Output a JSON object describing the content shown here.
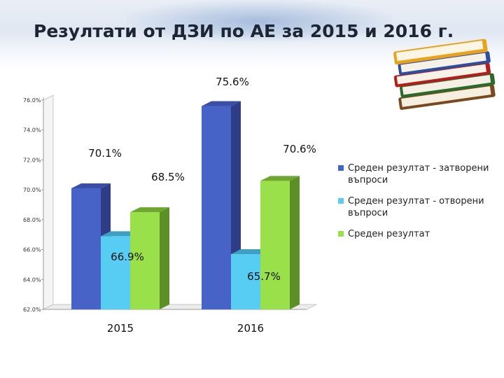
{
  "slide": {
    "title": "Резултати от ДЗИ по АЕ за 2015 и 2016 г."
  },
  "decoration": {
    "icon": "books-stack-icon"
  },
  "chart_data": {
    "type": "bar",
    "style": "3d-clustered-column",
    "categories": [
      "2015",
      "2016"
    ],
    "series": [
      {
        "name": "Среден резултат - затворени въпроси",
        "values": [
          70.1,
          75.6
        ],
        "labels": [
          "70.1%",
          "75.6%"
        ],
        "color": "#4863c8",
        "side": "#2e3d86",
        "top": "#3a4ea6"
      },
      {
        "name": "Среден резултат - отворени въпроси",
        "values": [
          66.9,
          65.7
        ],
        "labels": [
          "66.9%",
          "65.7%"
        ],
        "color": "#57cdf3",
        "side": "#3593b4",
        "top": "#3f9fc2"
      },
      {
        "name": "Среден резултат",
        "values": [
          68.5,
          70.6
        ],
        "labels": [
          "68.5%",
          "70.6%"
        ],
        "color": "#99e04a",
        "side": "#5c8f25",
        "top": "#6ea62f"
      }
    ],
    "yticks": [
      "62.0%",
      "64.0%",
      "66.0%",
      "68.0%",
      "70.0%",
      "72.0%",
      "74.0%",
      "76.0%"
    ],
    "ylim": [
      62,
      76
    ],
    "grid": false,
    "legend_position": "right"
  }
}
